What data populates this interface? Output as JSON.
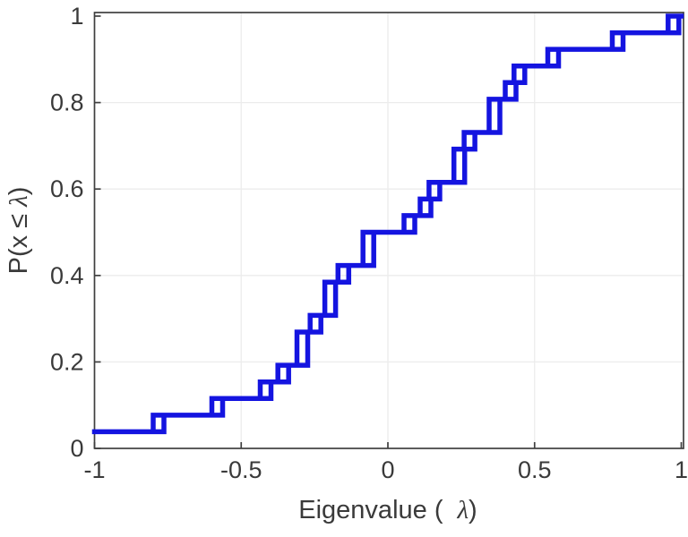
{
  "chart_data": {
    "type": "line",
    "subtype": "empirical-cdf-staircase",
    "title": "",
    "xlabel": "Eigenvalue ( λ)",
    "xlabel_parts": {
      "pre": "Eigenvalue (",
      "lambda": "λ",
      "post": ")"
    },
    "ylabel": "P(x ≤ λ)",
    "ylabel_parts": {
      "pre": "P(x ",
      "leq": "≤",
      "mid": " ",
      "lambda": "λ",
      "post": ")"
    },
    "xlim": [
      -1,
      1
    ],
    "ylim": [
      0,
      1
    ],
    "grid": true,
    "legend": "none",
    "x_tick_labels": [
      "-1",
      "-0.5",
      "0",
      "0.5",
      "1"
    ],
    "x_ticks": [
      -1,
      -0.5,
      0,
      0.5,
      1
    ],
    "y_tick_labels": [
      "0",
      "0.2",
      "0.4",
      "0.6",
      "0.8",
      "1"
    ],
    "y_ticks": [
      0,
      0.2,
      0.4,
      0.6,
      0.8,
      1
    ],
    "n_points": 26,
    "start": {
      "x": -1.0,
      "p": 0.0385
    },
    "steps": [
      {
        "x": -0.8,
        "p": 0.0769
      },
      {
        "x": -0.6,
        "p": 0.1154
      },
      {
        "x": -0.435,
        "p": 0.1538
      },
      {
        "x": -0.375,
        "p": 0.1923
      },
      {
        "x": -0.31,
        "p": 0.2692
      },
      {
        "x": -0.265,
        "p": 0.3077
      },
      {
        "x": -0.215,
        "p": 0.3846
      },
      {
        "x": -0.17,
        "p": 0.4231
      },
      {
        "x": -0.085,
        "p": 0.5
      },
      {
        "x": 0.055,
        "p": 0.5385
      },
      {
        "x": 0.11,
        "p": 0.5769
      },
      {
        "x": 0.14,
        "p": 0.6154
      },
      {
        "x": 0.225,
        "p": 0.6923
      },
      {
        "x": 0.26,
        "p": 0.7308
      },
      {
        "x": 0.345,
        "p": 0.8077
      },
      {
        "x": 0.4,
        "p": 0.8462
      },
      {
        "x": 0.43,
        "p": 0.8846
      },
      {
        "x": 0.545,
        "p": 0.9231
      },
      {
        "x": 0.765,
        "p": 0.9615
      },
      {
        "x": 0.955,
        "p": 1.0
      }
    ],
    "eigenvalues": [
      -1.0,
      -0.8,
      -0.6,
      -0.435,
      -0.375,
      -0.31,
      -0.31,
      -0.265,
      -0.215,
      -0.215,
      -0.17,
      -0.085,
      -0.085,
      0.055,
      0.11,
      0.14,
      0.225,
      0.225,
      0.26,
      0.345,
      0.345,
      0.4,
      0.43,
      0.545,
      0.765,
      0.955
    ],
    "colors": {
      "line": "#1414e0",
      "frame": "#3f3f3f",
      "grid": "#ececec",
      "text": "#3a3a3a"
    }
  }
}
